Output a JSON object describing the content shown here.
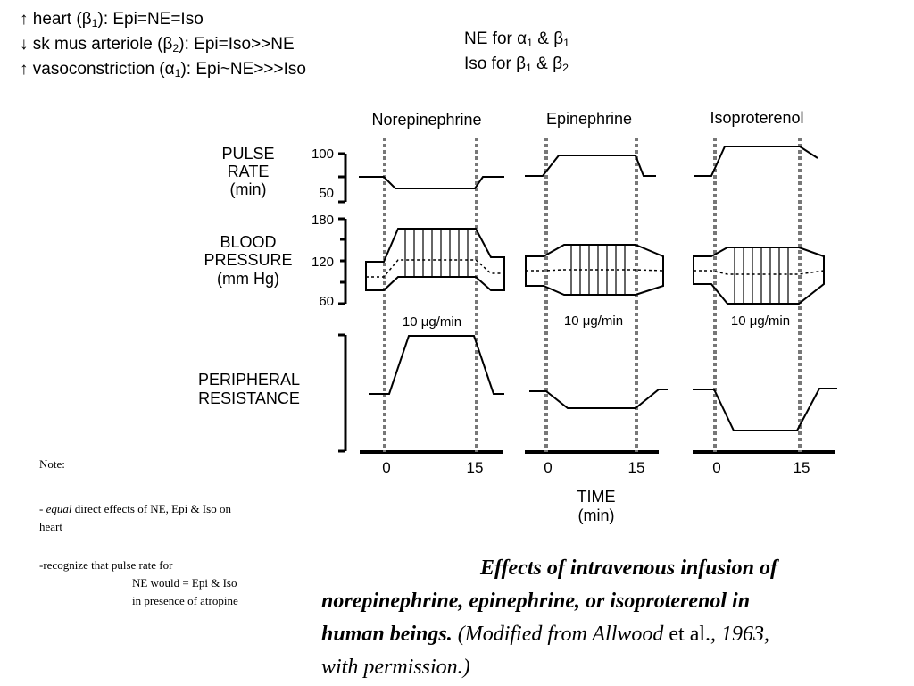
{
  "summary": {
    "heart": {
      "arrow": "↑",
      "text": " heart (β",
      "sub": "1",
      "rest": "): Epi=NE=Iso"
    },
    "skmus": {
      "arrow": "↓",
      "text": " sk mus arteriole (β",
      "sub": "2",
      "rest": "): Epi=Iso>>NE"
    },
    "vaso": {
      "arrow": "↑",
      "text": " vasoconstriction (α",
      "sub": "1",
      "rest": "): Epi~NE>>>Iso"
    }
  },
  "receptors": {
    "ne": {
      "text": "NE for α",
      "sub1": "1",
      "mid": " & β",
      "sub2": "1"
    },
    "iso": {
      "text": "Iso for β",
      "sub1": "1",
      "mid": " & β",
      "sub2": "2"
    }
  },
  "panels": [
    {
      "title": "Norepinephrine",
      "dose": "10 μg/min"
    },
    {
      "title": "Epinephrine",
      "dose": "10 μg/min"
    },
    {
      "title": "Isoproterenol",
      "dose": "10 μg/min"
    }
  ],
  "row_labels": {
    "pulse": [
      "PULSE",
      "RATE",
      "(min)"
    ],
    "bp": [
      "BLOOD",
      "PRESSURE",
      "(mm Hg)"
    ],
    "pr": [
      "PERIPHERAL",
      "RESISTANCE"
    ]
  },
  "ticks": {
    "pulse_high": "100",
    "pulse_low": "50",
    "bp_high": "180",
    "bp_mid": "120",
    "bp_low": "60"
  },
  "time_ticks": [
    "0",
    "15"
  ],
  "time_label": [
    "TIME",
    "(min)"
  ],
  "note": {
    "title": "Note:",
    "line1_pre": "- ",
    "line1_em": "equal",
    "line1_rest": " direct effects of NE, Epi & Iso  on",
    "line2": "heart",
    "line3": "-recognize that pulse rate for",
    "line4": "NE would = Epi & Iso",
    "line5": "in presence of atropine"
  },
  "caption": {
    "l1": "Effects of intravenous infusion of",
    "l2": "norepinephrine, epinephrine, or isoproterenol in",
    "l3a": "human beings. ",
    "l3b": "(Modified from Allwood ",
    "l3c": "et al.",
    "l3d": ", 1963,",
    "l4": "with permission.)"
  }
}
